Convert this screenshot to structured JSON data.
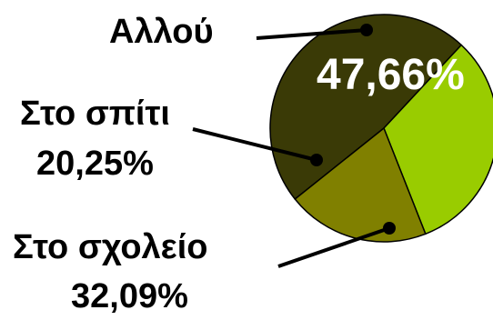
{
  "chart_data": {
    "type": "pie",
    "title": "",
    "slices": [
      {
        "label": "Αλλού",
        "value": 47.66,
        "value_text": "47,66%",
        "color": "#3a3a06"
      },
      {
        "label": "Στο σχολείο",
        "value": 32.09,
        "value_text": "32,09%",
        "color": "#99cc00"
      },
      {
        "label": "Στο σπίτι",
        "value": 20.25,
        "value_text": "20,25%",
        "color": "#808000"
      }
    ],
    "legend": "none",
    "edge_color": "#000000"
  }
}
